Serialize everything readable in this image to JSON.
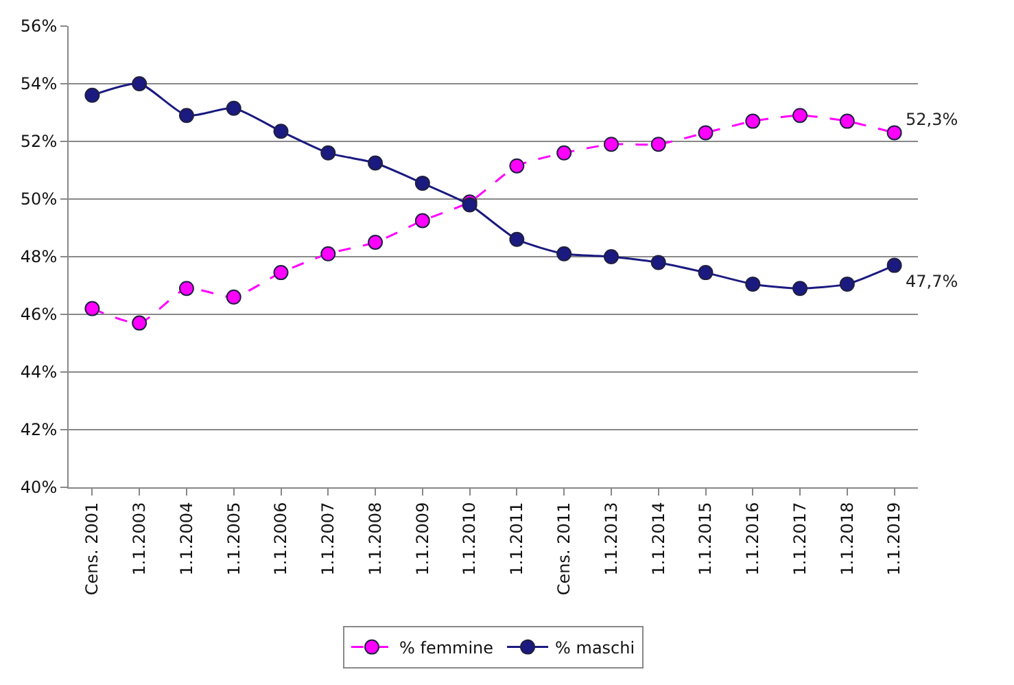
{
  "chart_data": {
    "type": "line",
    "categories": [
      "Cens. 2001",
      "1.1.2003",
      "1.1.2004",
      "1.1.2005",
      "1.1.2006",
      "1.1.2007",
      "1.1.2008",
      "1.1.2009",
      "1.1.2010",
      "1.1.2011",
      "Cens. 2011",
      "1.1.2013",
      "1.1.2014",
      "1.1.2015",
      "1.1.2016",
      "1.1.2017",
      "1.1.2018",
      "1.1.2019"
    ],
    "series": [
      {
        "name": "% femmine",
        "color": "#ff00ff",
        "line_style": "dashed",
        "values": [
          46.2,
          45.7,
          46.9,
          46.6,
          47.45,
          48.1,
          48.5,
          49.25,
          49.9,
          51.15,
          51.6,
          51.9,
          51.9,
          52.3,
          52.7,
          52.9,
          52.7,
          52.3
        ]
      },
      {
        "name": "% maschi",
        "color": "#1a1a80",
        "line_style": "solid",
        "values": [
          53.6,
          54.0,
          52.9,
          53.15,
          52.35,
          51.6,
          51.25,
          50.55,
          49.8,
          48.6,
          48.1,
          48.0,
          47.8,
          47.45,
          47.05,
          46.9,
          47.05,
          47.7
        ]
      }
    ],
    "annotations": [
      {
        "text": "52,3%",
        "x": "1.1.2019",
        "y": 52.3
      },
      {
        "text": "47,7%",
        "x": "1.1.2019",
        "y": 47.7
      }
    ],
    "ylim": [
      40,
      56
    ],
    "yticks": [
      {
        "value": 40,
        "label": "40%"
      },
      {
        "value": 42,
        "label": "42%"
      },
      {
        "value": 44,
        "label": "44%"
      },
      {
        "value": 46,
        "label": "46%"
      },
      {
        "value": 48,
        "label": "48%"
      },
      {
        "value": 50,
        "label": "50%"
      },
      {
        "value": 52,
        "label": "52%"
      },
      {
        "value": 54,
        "label": "54%"
      },
      {
        "value": 56,
        "label": "56%"
      }
    ],
    "grid": "y",
    "legend": "bottom",
    "marker": "circle"
  }
}
